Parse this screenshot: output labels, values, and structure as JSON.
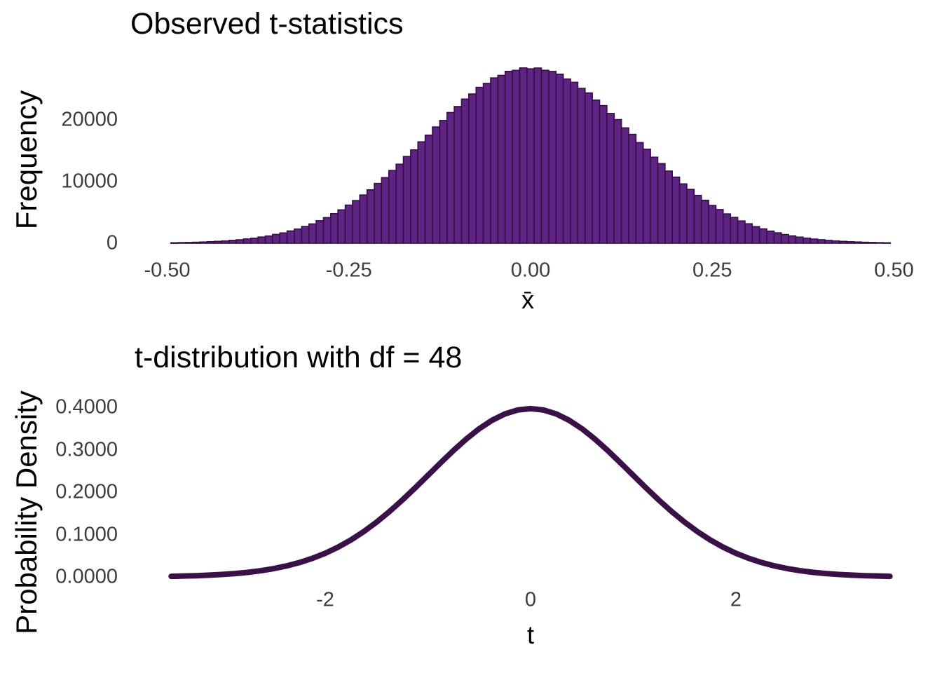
{
  "figure": {
    "background": "#ffffff",
    "tick_label_color": "#3d3d3d",
    "title_color": "#000000"
  },
  "chart_data": [
    {
      "type": "bar",
      "subtype": "histogram",
      "title": "Observed t-statistics",
      "xlabel": "x̄",
      "ylabel": "Frequency",
      "xlim": [
        -0.5,
        0.5
      ],
      "ylim": [
        0,
        28500
      ],
      "grid": false,
      "legend": null,
      "x_ticks": [
        {
          "value": -0.5,
          "label": "-0.50"
        },
        {
          "value": -0.25,
          "label": "-0.25"
        },
        {
          "value": 0.0,
          "label": "0.00"
        },
        {
          "value": 0.25,
          "label": "0.25"
        },
        {
          "value": 0.5,
          "label": "0.50"
        }
      ],
      "y_ticks": [
        {
          "value": 0,
          "label": "0"
        },
        {
          "value": 10000,
          "label": "10000"
        },
        {
          "value": 20000,
          "label": "20000"
        }
      ],
      "bin_width": 0.01,
      "bar_fill": "#5e2484",
      "bar_edge": "#380d45",
      "bin_centers": [
        -0.49,
        -0.48,
        -0.47,
        -0.46,
        -0.45,
        -0.44,
        -0.43,
        -0.42,
        -0.41,
        -0.4,
        -0.39,
        -0.38,
        -0.37,
        -0.36,
        -0.35,
        -0.34,
        -0.33,
        -0.32,
        -0.31,
        -0.3,
        -0.29,
        -0.28,
        -0.27,
        -0.26,
        -0.25,
        -0.24,
        -0.23,
        -0.22,
        -0.21,
        -0.2,
        -0.19,
        -0.18,
        -0.17,
        -0.16,
        -0.15,
        -0.14,
        -0.13,
        -0.12,
        -0.11,
        -0.1,
        -0.09,
        -0.08,
        -0.07,
        -0.06,
        -0.05,
        -0.04,
        -0.03,
        -0.02,
        -0.01,
        0.0,
        0.01,
        0.02,
        0.03,
        0.04,
        0.05,
        0.06,
        0.07,
        0.08,
        0.09,
        0.1,
        0.11,
        0.12,
        0.13,
        0.14,
        0.15,
        0.16,
        0.17,
        0.18,
        0.19,
        0.2,
        0.21,
        0.22,
        0.23,
        0.24,
        0.25,
        0.26,
        0.27,
        0.28,
        0.29,
        0.3,
        0.31,
        0.32,
        0.33,
        0.34,
        0.35,
        0.36,
        0.37,
        0.38,
        0.39,
        0.4,
        0.41,
        0.42,
        0.43,
        0.44,
        0.45,
        0.46,
        0.47,
        0.48,
        0.49
      ],
      "frequencies": [
        78,
        103,
        126,
        163,
        198,
        253,
        312,
        378,
        470,
        562,
        695,
        826,
        1008,
        1182,
        1431,
        1670,
        1995,
        2309,
        2726,
        3131,
        3652,
        4158,
        4802,
        5416,
        6189,
        6917,
        7823,
        8664,
        9699,
        10642,
        11797,
        12814,
        14064,
        15133,
        16441,
        17526,
        18852,
        19902,
        21196,
        22160,
        23372,
        24199,
        25272,
        25918,
        26800,
        27218,
        27868,
        28031,
        28420,
        28273,
        28404,
        28040,
        27851,
        27402,
        26628,
        26091,
        25104,
        24370,
        23215,
        22317,
        21038,
        20047,
        18703,
        17652,
        16323,
        15242,
        13952,
        12911,
        11702,
        10719,
        9624,
        8731,
        7760,
        6972,
        6135,
        5462,
        4757,
        4195,
        3616,
        3158,
        2695,
        2334,
        1970,
        1691,
        1413,
        1200,
        992,
        838,
        683,
        573,
        461,
        384,
        306,
        247,
        203,
        159,
        130,
        101,
        81
      ]
    },
    {
      "type": "line",
      "title": "t-distribution with df = 48",
      "xlabel": "t",
      "ylabel": "Probability Density",
      "xlim": [
        -3.5,
        3.5
      ],
      "ylim": [
        0,
        0.42
      ],
      "grid": false,
      "legend": null,
      "x_ticks": [
        {
          "value": -2,
          "label": "-2"
        },
        {
          "value": 0,
          "label": "0"
        },
        {
          "value": 2,
          "label": "2"
        }
      ],
      "y_ticks": [
        {
          "value": 0.0,
          "label": "0.0000"
        },
        {
          "value": 0.1,
          "label": "0.1000"
        },
        {
          "value": 0.2,
          "label": "0.2000"
        },
        {
          "value": 0.3,
          "label": "0.3000"
        },
        {
          "value": 0.4,
          "label": "0.4000"
        }
      ],
      "line_color": "#3a1048",
      "line_width": 8,
      "x": [
        -3.5,
        -3.375,
        -3.25,
        -3.125,
        -3.0,
        -2.875,
        -2.75,
        -2.625,
        -2.5,
        -2.375,
        -2.25,
        -2.125,
        -2.0,
        -1.875,
        -1.75,
        -1.625,
        -1.5,
        -1.375,
        -1.25,
        -1.125,
        -1.0,
        -0.875,
        -0.75,
        -0.625,
        -0.5,
        -0.375,
        -0.25,
        -0.125,
        0.0,
        0.125,
        0.25,
        0.375,
        0.5,
        0.625,
        0.75,
        0.875,
        1.0,
        1.125,
        1.25,
        1.375,
        1.5,
        1.625,
        1.75,
        1.875,
        2.0,
        2.125,
        2.25,
        2.375,
        2.5,
        2.625,
        2.75,
        2.875,
        3.0,
        3.125,
        3.25,
        3.375,
        3.5
      ],
      "y": [
        0.0015,
        0.0022,
        0.003,
        0.0043,
        0.0059,
        0.0081,
        0.011,
        0.0148,
        0.0198,
        0.0261,
        0.034,
        0.0439,
        0.0558,
        0.0702,
        0.0872,
        0.1069,
        0.1292,
        0.154,
        0.1811,
        0.2098,
        0.2395,
        0.2693,
        0.2984,
        0.3254,
        0.3495,
        0.3694,
        0.3844,
        0.3937,
        0.3969,
        0.3937,
        0.3844,
        0.3694,
        0.3495,
        0.3254,
        0.2984,
        0.2693,
        0.2395,
        0.2098,
        0.1811,
        0.154,
        0.1292,
        0.1069,
        0.0872,
        0.0702,
        0.0558,
        0.0439,
        0.034,
        0.0261,
        0.0198,
        0.0148,
        0.011,
        0.0081,
        0.0059,
        0.0043,
        0.003,
        0.0022,
        0.0015
      ]
    }
  ]
}
